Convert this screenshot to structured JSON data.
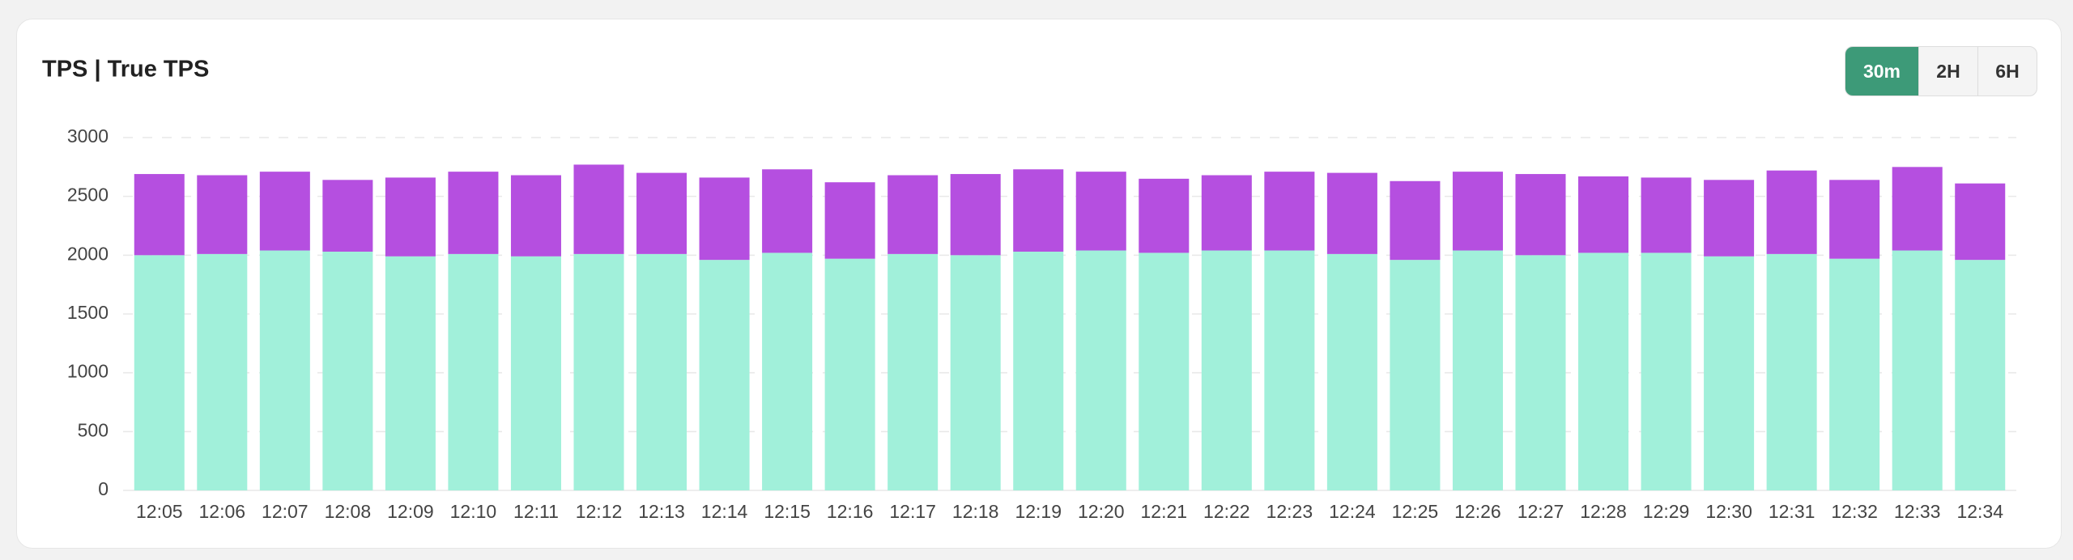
{
  "chart_data": {
    "type": "stacked_bar",
    "title": "TPS | True TPS",
    "categories": [
      "12:05",
      "12:06",
      "12:07",
      "12:08",
      "12:09",
      "12:10",
      "12:11",
      "12:12",
      "12:13",
      "12:14",
      "12:15",
      "12:16",
      "12:17",
      "12:18",
      "12:19",
      "12:20",
      "12:21",
      "12:22",
      "12:23",
      "12:24",
      "12:25",
      "12:26",
      "12:27",
      "12:28",
      "12:29",
      "12:30",
      "12:31",
      "12:32",
      "12:33",
      "12:34"
    ],
    "series": [
      {
        "color": "#a1f0da",
        "values": [
          2000,
          2010,
          2040,
          2030,
          1990,
          2010,
          1990,
          2010,
          2010,
          1960,
          2020,
          1970,
          2010,
          2000,
          2030,
          2040,
          2020,
          2040,
          2040,
          2010,
          1960,
          2040,
          2000,
          2020,
          2020,
          1990,
          2010,
          1970,
          2040,
          1960
        ]
      },
      {
        "color": "#b54fe0",
        "values": [
          690,
          670,
          670,
          610,
          670,
          700,
          690,
          760,
          690,
          700,
          710,
          650,
          670,
          690,
          700,
          670,
          630,
          640,
          670,
          690,
          670,
          670,
          690,
          650,
          640,
          650,
          710,
          670,
          710,
          650
        ]
      }
    ],
    "ylim": [
      0,
      3000
    ],
    "yticks": [
      0,
      500,
      1000,
      1500,
      2000,
      2500,
      3000
    ],
    "grid": true
  },
  "controls": {
    "options": [
      "30m",
      "2H",
      "6H"
    ],
    "selected": 0
  }
}
